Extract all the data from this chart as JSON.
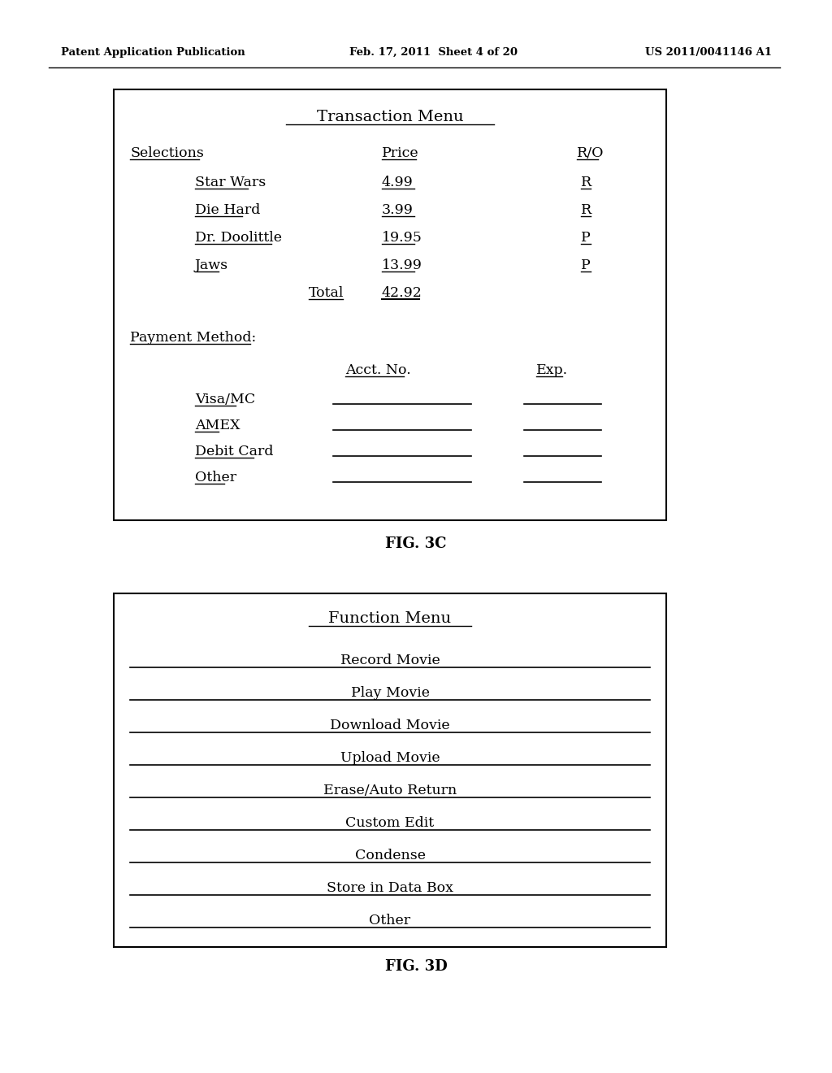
{
  "bg_color": "#ffffff",
  "header_left": "Patent Application Publication",
  "header_mid": "Feb. 17, 2011  Sheet 4 of 20",
  "header_right": "US 2011/0041146 A1",
  "fig3c_label": "FIG. 3C",
  "fig3d_label": "FIG. 3D",
  "box1": {
    "title": "Transaction Menu",
    "col1_header": "Selections",
    "col2_header": "Price",
    "col3_header": "R/O",
    "items": [
      {
        "name": "Star Wars",
        "price": "4.99",
        "ro": "R"
      },
      {
        "name": "Die Hard",
        "price": "3.99",
        "ro": "R"
      },
      {
        "name": "Dr. Doolittle",
        "price": "19.95",
        "ro": "P"
      },
      {
        "name": "Jaws",
        "price": "13.99",
        "ro": "P"
      }
    ],
    "total_label": "Total",
    "total_value": "42.92",
    "payment_header": "Payment Method:",
    "acct_header": "Acct. No.",
    "exp_header": "Exp.",
    "payment_methods": [
      "Visa/MC",
      "AMEX",
      "Debit Card",
      "Other"
    ]
  },
  "box2": {
    "title": "Function Menu",
    "items": [
      "Record Movie",
      "Play Movie",
      "Download Movie",
      "Upload Movie",
      "Erase/Auto Return",
      "Custom Edit",
      "Condense",
      "Store in Data Box",
      "Other"
    ]
  }
}
